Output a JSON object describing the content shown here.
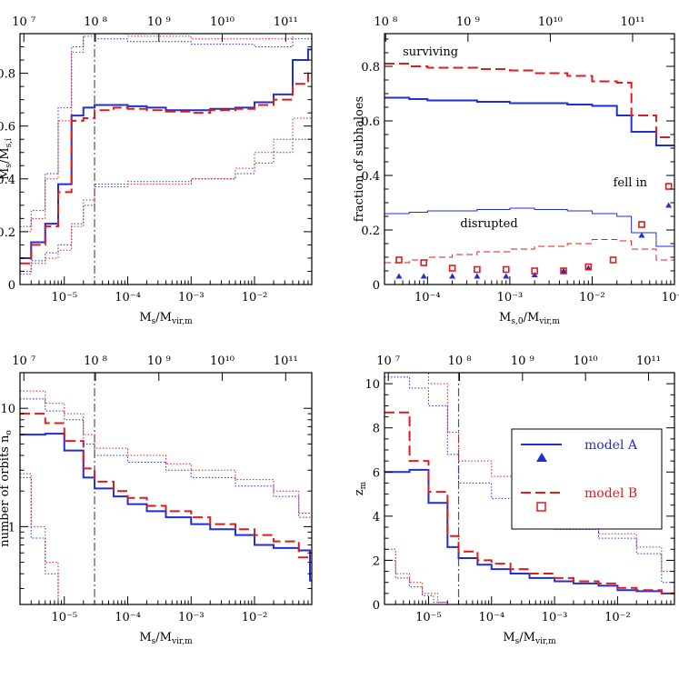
{
  "colors": {
    "model_A": "#1f2fd6",
    "model_B": "#e01b1b",
    "vline": "#555555"
  },
  "chart_data": [
    {
      "type": "line",
      "id": "top-left",
      "xscale": "log",
      "xlim": [
        2e-06,
        0.08
      ],
      "ylim": [
        0,
        0.95
      ],
      "yticks": [
        0,
        0.2,
        0.4,
        0.6,
        0.8
      ],
      "yticklabels": [
        "0",
        "0.2",
        "0.4",
        "0.6",
        "0.8"
      ],
      "xticks": [
        1e-05,
        0.0001,
        0.001,
        0.01
      ],
      "xticklabels": [
        "10⁻⁵",
        "10⁻⁴",
        "10⁻³",
        "10⁻²"
      ],
      "topticks": [
        2.3e-06,
        3.1e-05,
        0.00031,
        0.0031,
        0.031
      ],
      "topticklabels": [
        "10 ⁷",
        "10 ⁸",
        "10 ⁹",
        "10¹⁰",
        "10¹¹"
      ],
      "xlabel": "Ms/Mvir,m",
      "ylabel": "Ms/Ms,i",
      "vline": 3e-05,
      "series": [
        {
          "name": "model A",
          "style": "solid",
          "width": 2,
          "edges": [
            2e-06,
            3e-06,
            5e-06,
            8e-06,
            1.3e-05,
            2e-05,
            3e-05,
            6e-05,
            0.0001,
            0.0002,
            0.0004,
            0.001,
            0.002,
            0.005,
            0.01,
            0.02,
            0.04,
            0.07,
            0.08
          ],
          "values": [
            0.1,
            0.16,
            0.23,
            0.38,
            0.64,
            0.67,
            0.68,
            0.68,
            0.675,
            0.67,
            0.66,
            0.66,
            0.665,
            0.67,
            0.69,
            0.72,
            0.85,
            0.89
          ]
        },
        {
          "name": "model B",
          "style": "dashed",
          "width": 2,
          "edges": [
            2e-06,
            3e-06,
            5e-06,
            8e-06,
            1.3e-05,
            2e-05,
            3e-05,
            6e-05,
            0.0001,
            0.0002,
            0.0004,
            0.001,
            0.002,
            0.005,
            0.01,
            0.02,
            0.04,
            0.07,
            0.08
          ],
          "values": [
            0.08,
            0.15,
            0.22,
            0.35,
            0.62,
            0.63,
            0.66,
            0.67,
            0.665,
            0.66,
            0.655,
            0.65,
            0.66,
            0.665,
            0.68,
            0.7,
            0.76,
            0.8
          ]
        },
        {
          "name": "",
          "style": "dotted",
          "colorKey": "model_A",
          "edges": [
            2e-06,
            3e-06,
            5e-06,
            8e-06,
            1.3e-05,
            2e-05,
            3e-05,
            0.0001,
            0.001,
            0.005,
            0.01,
            0.02,
            0.04,
            0.08
          ],
          "values": [
            0.05,
            0.09,
            0.12,
            0.15,
            0.23,
            0.3,
            0.38,
            0.39,
            0.4,
            0.42,
            0.46,
            0.5,
            0.55
          ]
        },
        {
          "name": "",
          "style": "dotted",
          "colorKey": "model_A",
          "edges": [
            2e-06,
            3e-06,
            5e-06,
            8e-06,
            1.3e-05,
            2e-05,
            3e-05,
            0.0001,
            0.001,
            0.01,
            0.04,
            0.08
          ],
          "values": [
            0.22,
            0.28,
            0.42,
            0.67,
            0.9,
            0.94,
            0.93,
            0.92,
            0.91,
            0.9,
            0.93
          ]
        },
        {
          "name": "",
          "style": "dotted",
          "colorKey": "model_B",
          "edges": [
            2e-06,
            3e-06,
            5e-06,
            8e-06,
            1.3e-05,
            2e-05,
            3e-05,
            0.0001,
            0.001,
            0.005,
            0.01,
            0.02,
            0.04,
            0.08
          ],
          "values": [
            0.04,
            0.08,
            0.1,
            0.13,
            0.22,
            0.32,
            0.37,
            0.38,
            0.4,
            0.44,
            0.5,
            0.55,
            0.63
          ]
        },
        {
          "name": "",
          "style": "dotted",
          "colorKey": "model_B",
          "edges": [
            2e-06,
            3e-06,
            5e-06,
            8e-06,
            1.3e-05,
            2e-05,
            3e-05,
            0.0001,
            0.001,
            0.01,
            0.04,
            0.08
          ],
          "values": [
            0.2,
            0.25,
            0.4,
            0.62,
            0.88,
            0.95,
            0.95,
            0.94,
            0.93,
            0.93,
            0.95
          ]
        }
      ]
    },
    {
      "type": "line",
      "id": "top-right",
      "xscale": "log",
      "xlim": [
        3e-05,
        0.1
      ],
      "ylim": [
        0,
        0.92
      ],
      "yticks": [
        0,
        0.2,
        0.4,
        0.6,
        0.8
      ],
      "yticklabels": [
        "0",
        "0.2",
        "0.4",
        "0.6",
        "0.8"
      ],
      "xticks": [
        0.0001,
        0.001,
        0.01,
        0.1
      ],
      "xticklabels": [
        "10⁻⁴",
        "10⁻³",
        "10⁻²",
        "10⁻¹"
      ],
      "topticks": [
        3.1e-05,
        0.00031,
        0.0031,
        0.031
      ],
      "topticklabels": [
        "10 ⁸",
        "10 ⁹",
        "10¹⁰",
        "10¹¹"
      ],
      "xlabel": "Ms,0/Mvir,m",
      "ylabel": "fraction of subhaloes",
      "annotations": [
        {
          "text": "surviving",
          "x": 5e-05,
          "y": 0.84
        },
        {
          "text": "fell in",
          "x": 0.018,
          "y": 0.36
        },
        {
          "text": "disrupted",
          "x": 0.00025,
          "y": 0.21
        }
      ],
      "series": [
        {
          "name": "model A",
          "style": "solid",
          "width": 2,
          "edges": [
            3e-05,
            6e-05,
            0.0001,
            0.0002,
            0.0004,
            0.001,
            0.002,
            0.005,
            0.01,
            0.02,
            0.03,
            0.06,
            0.1
          ],
          "values": [
            0.685,
            0.68,
            0.675,
            0.675,
            0.67,
            0.665,
            0.665,
            0.66,
            0.655,
            0.62,
            0.56,
            0.51
          ]
        },
        {
          "name": "model B",
          "style": "dashed",
          "width": 2,
          "edges": [
            3e-05,
            6e-05,
            0.0001,
            0.0002,
            0.0004,
            0.001,
            0.002,
            0.005,
            0.01,
            0.02,
            0.03,
            0.06,
            0.1
          ],
          "values": [
            0.81,
            0.8,
            0.795,
            0.795,
            0.79,
            0.785,
            0.775,
            0.765,
            0.745,
            0.74,
            0.62,
            0.54
          ]
        },
        {
          "name": "",
          "style": "solid",
          "width": 1,
          "colorKey": "model_A",
          "edges": [
            3e-05,
            6e-05,
            0.0001,
            0.0002,
            0.0004,
            0.001,
            0.002,
            0.005,
            0.01,
            0.02,
            0.03,
            0.06,
            0.1
          ],
          "values": [
            0.26,
            0.265,
            0.27,
            0.27,
            0.275,
            0.28,
            0.275,
            0.27,
            0.26,
            0.25,
            0.19,
            0.14
          ]
        },
        {
          "name": "",
          "style": "dashed",
          "width": 1,
          "colorKey": "model_B",
          "edges": [
            3e-05,
            6e-05,
            0.0001,
            0.0002,
            0.0004,
            0.001,
            0.002,
            0.005,
            0.01,
            0.02,
            0.03,
            0.06,
            0.1
          ],
          "values": [
            0.08,
            0.09,
            0.1,
            0.11,
            0.12,
            0.13,
            0.14,
            0.15,
            0.165,
            0.16,
            0.13,
            0.09
          ]
        },
        {
          "name": "model A",
          "style": "triangles",
          "x": [
            4.5e-05,
            9e-05,
            0.0002,
            0.0004,
            0.0009,
            0.002,
            0.0045,
            0.009,
            0.04,
            0.085
          ],
          "y": [
            0.03,
            0.03,
            0.03,
            0.03,
            0.03,
            0.035,
            0.05,
            0.06,
            0.18,
            0.29
          ]
        },
        {
          "name": "model B",
          "style": "squares",
          "x": [
            4.5e-05,
            9e-05,
            0.0002,
            0.0004,
            0.0009,
            0.002,
            0.0045,
            0.009,
            0.018,
            0.04,
            0.085
          ],
          "y": [
            0.09,
            0.08,
            0.06,
            0.055,
            0.055,
            0.05,
            0.05,
            0.065,
            0.09,
            0.22,
            0.36
          ]
        }
      ]
    },
    {
      "type": "line",
      "id": "bottom-left",
      "xscale": "log",
      "xlim": [
        2e-06,
        0.08
      ],
      "yscale": "log",
      "ylim": [
        0.22,
        20
      ],
      "yticks": [
        1,
        10
      ],
      "yticklabels": [
        "1",
        "10"
      ],
      "xticks": [
        1e-05,
        0.0001,
        0.001,
        0.01
      ],
      "xticklabels": [
        "10⁻⁵",
        "10⁻⁴",
        "10⁻³",
        "10⁻²"
      ],
      "topticks": [
        2.3e-06,
        3.1e-05,
        0.00031,
        0.0031,
        0.031
      ],
      "topticklabels": [
        "10 ⁷",
        "10 ⁸",
        "10 ⁹",
        "10¹⁰",
        "10¹¹"
      ],
      "xlabel": "Ms/Mvir,m",
      "ylabel": "number of orbits no",
      "vline": 3e-05,
      "series": [
        {
          "name": "model A",
          "style": "solid",
          "width": 2,
          "edges": [
            2e-06,
            5e-06,
            1e-05,
            2e-05,
            3e-05,
            6e-05,
            0.0001,
            0.0002,
            0.0004,
            0.001,
            0.002,
            0.005,
            0.01,
            0.02,
            0.05,
            0.075,
            0.08
          ],
          "values": [
            6.0,
            6.1,
            4.4,
            2.6,
            2.1,
            1.8,
            1.55,
            1.35,
            1.2,
            1.05,
            0.95,
            0.85,
            0.7,
            0.66,
            0.63,
            0.35
          ]
        },
        {
          "name": "model B",
          "style": "dashed",
          "width": 2,
          "edges": [
            2e-06,
            5e-06,
            1e-05,
            2e-05,
            3e-05,
            6e-05,
            0.0001,
            0.0002,
            0.0004,
            0.001,
            0.002,
            0.005,
            0.01,
            0.02,
            0.05,
            0.075,
            0.08
          ],
          "values": [
            9.0,
            7.5,
            5.3,
            3.1,
            2.4,
            2.0,
            1.75,
            1.5,
            1.35,
            1.2,
            1.05,
            0.95,
            0.85,
            0.75,
            0.55,
            0.6
          ]
        },
        {
          "name": "",
          "style": "dotted",
          "colorKey": "model_A",
          "edges": [
            2e-06,
            3e-06,
            5e-06,
            8e-06,
            1.2e-05
          ],
          "values": [
            2.6,
            0.8,
            0.4,
            0.22
          ]
        },
        {
          "name": "",
          "style": "dotted",
          "colorKey": "model_A",
          "edges": [
            2e-06,
            5e-06,
            1e-05,
            2e-05,
            3e-05,
            0.0001,
            0.0004,
            0.001,
            0.005,
            0.02,
            0.05,
            0.08
          ],
          "values": [
            12,
            9.5,
            8,
            5,
            4,
            3.5,
            3,
            2.6,
            2.2,
            1.8,
            1.2
          ]
        },
        {
          "name": "",
          "style": "dotted",
          "colorKey": "model_B",
          "edges": [
            2e-06,
            3e-06,
            5e-06,
            8e-06,
            1.4e-05
          ],
          "values": [
            2.8,
            1.0,
            0.5,
            0.22
          ]
        },
        {
          "name": "",
          "style": "dotted",
          "colorKey": "model_B",
          "edges": [
            2e-06,
            5e-06,
            1e-05,
            2e-05,
            3e-05,
            0.0001,
            0.0004,
            0.001,
            0.005,
            0.02,
            0.05,
            0.08
          ],
          "values": [
            14,
            11,
            9,
            6,
            4.6,
            4,
            3.4,
            3,
            2.5,
            2.0,
            1.3
          ]
        }
      ]
    },
    {
      "type": "line",
      "id": "bottom-right",
      "xscale": "log",
      "xlim": [
        2e-06,
        0.08
      ],
      "ylim": [
        0,
        10.5
      ],
      "yticks": [
        0,
        2,
        4,
        6,
        8,
        10
      ],
      "yticklabels": [
        "0",
        "2",
        "4",
        "6",
        "8",
        "10"
      ],
      "xticks": [
        1e-05,
        0.0001,
        0.001,
        0.01
      ],
      "xticklabels": [
        "10⁻⁵",
        "10⁻⁴",
        "10⁻³",
        "10⁻²"
      ],
      "topticks": [
        2.3e-06,
        3.1e-05,
        0.00031,
        0.0031,
        0.031
      ],
      "topticklabels": [
        "10 ⁷",
        "10 ⁸",
        "10 ⁹",
        "10¹⁰",
        "10¹¹"
      ],
      "xlabel": "Ms/Mvir,m",
      "ylabel": "zm",
      "vline": 3e-05,
      "legend": {
        "entries": [
          {
            "label": "model A",
            "colorKey": "model_A"
          },
          {
            "label": "model B",
            "colorKey": "model_B"
          }
        ]
      },
      "series": [
        {
          "name": "model A",
          "style": "solid",
          "width": 2,
          "edges": [
            2e-06,
            5e-06,
            1e-05,
            2e-05,
            3e-05,
            6e-05,
            0.0001,
            0.0002,
            0.0004,
            0.001,
            0.002,
            0.005,
            0.01,
            0.02,
            0.05,
            0.08
          ],
          "values": [
            6.0,
            6.1,
            4.6,
            2.6,
            2.1,
            1.8,
            1.6,
            1.4,
            1.2,
            1.05,
            0.95,
            0.85,
            0.65,
            0.6,
            0.5
          ]
        },
        {
          "name": "model B",
          "style": "dashed",
          "width": 2,
          "edges": [
            2e-06,
            5e-06,
            1e-05,
            2e-05,
            3e-05,
            6e-05,
            0.0001,
            0.0002,
            0.0004,
            0.001,
            0.002,
            0.005,
            0.01,
            0.02,
            0.05,
            0.08
          ],
          "values": [
            8.7,
            6.5,
            5.1,
            3.1,
            2.4,
            2.0,
            1.85,
            1.6,
            1.4,
            1.2,
            1.05,
            0.95,
            0.75,
            0.65,
            0.5
          ]
        },
        {
          "name": "",
          "style": "dotted",
          "colorKey": "model_A",
          "edges": [
            2e-06,
            3e-06,
            5e-06,
            8e-06,
            1.2e-05,
            2e-05
          ],
          "values": [
            2.5,
            1.2,
            0.8,
            0.4,
            0.1
          ]
        },
        {
          "name": "",
          "style": "dotted",
          "colorKey": "model_A",
          "edges": [
            2e-06,
            5e-06,
            1e-05,
            2e-05,
            3e-05,
            0.0001,
            0.0004,
            0.001,
            0.005,
            0.02,
            0.05,
            0.08
          ],
          "values": [
            10.3,
            9.8,
            9.0,
            6.8,
            5.5,
            4.8,
            4.0,
            3.4,
            3.0,
            2.3,
            1.0
          ]
        },
        {
          "name": "",
          "style": "dotted",
          "colorKey": "model_B",
          "edges": [
            2e-06,
            3e-06,
            5e-06,
            8e-06,
            1.4e-05,
            2e-05
          ],
          "values": [
            2.0,
            1.4,
            1.0,
            0.5,
            0.1
          ]
        },
        {
          "name": "",
          "style": "dotted",
          "colorKey": "model_B",
          "edges": [
            2e-06,
            5e-06,
            1e-05,
            2e-05,
            3e-05,
            0.0001,
            0.0004,
            0.001,
            0.005,
            0.02,
            0.05,
            0.08
          ],
          "values": [
            10.5,
            10.5,
            10,
            7.8,
            6.5,
            5.8,
            4.9,
            4.0,
            3.2,
            2.6,
            1.5
          ]
        }
      ]
    }
  ]
}
